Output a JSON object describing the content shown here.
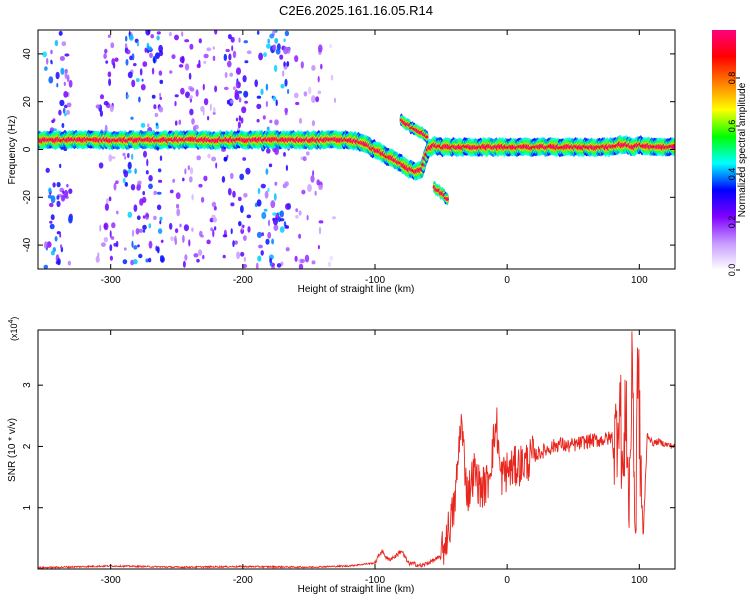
{
  "title": "C2E6.2025.161.16.05.R14",
  "chart_data": [
    {
      "type": "heatmap",
      "xlabel": "Height of straight line (km)",
      "ylabel": "Frequency (Hz)",
      "xlim": [
        -355,
        127
      ],
      "ylim": [
        -50,
        50
      ],
      "xticks": [
        -300,
        -200,
        -100,
        0,
        100
      ],
      "yticks": [
        -40,
        -20,
        0,
        20,
        40
      ],
      "colorbar": {
        "label": "Normalized spectral amplitude",
        "range": [
          0,
          1
        ],
        "ticks": [
          "0.0",
          "0.2",
          "0.4",
          "0.6",
          "0.8"
        ],
        "colors": [
          "#ffffff",
          "#c79bff",
          "#7f00ff",
          "#0000ff",
          "#00ffff",
          "#00ff00",
          "#ffff00",
          "#ff8000",
          "#ff0000",
          "#ff0080"
        ]
      },
      "ridge": {
        "x": [
          -355,
          -300,
          -250,
          -200,
          -150,
          -120,
          -110,
          -100,
          -90,
          -80,
          -75,
          -70,
          -65,
          -60,
          -55,
          -50,
          -45,
          -40,
          -30,
          -20,
          -10,
          0,
          20,
          40,
          60,
          70,
          80,
          85,
          90,
          95,
          100,
          110,
          127
        ],
        "y": [
          4,
          4,
          4,
          4,
          4,
          4,
          3,
          0,
          -3,
          -6,
          -8,
          -9,
          -9,
          0,
          2,
          1,
          1,
          1,
          1,
          1,
          1,
          1,
          1,
          1,
          1,
          1,
          1,
          2,
          2,
          1,
          2,
          1,
          1
        ]
      },
      "side_branches": [
        {
          "x": [
            -80,
            -72,
            -65,
            -60
          ],
          "y": [
            12,
            9,
            7,
            5
          ]
        },
        {
          "x": [
            -55,
            -48,
            -45
          ],
          "y": [
            -16,
            -19,
            -21
          ]
        }
      ],
      "noise_region_x": [
        -355,
        -130
      ],
      "noise_stripes": [
        {
          "x": [
            -350,
            -330
          ],
          "amplitude": 0.35
        },
        {
          "x": [
            -310,
            -295
          ],
          "amplitude": 0.25
        },
        {
          "x": [
            -290,
            -260
          ],
          "amplitude": 0.35
        },
        {
          "x": [
            -255,
            -220
          ],
          "amplitude": 0.22
        },
        {
          "x": [
            -215,
            -195
          ],
          "amplitude": 0.3
        },
        {
          "x": [
            -190,
            -165
          ],
          "amplitude": 0.35
        },
        {
          "x": [
            -160,
            -140
          ],
          "amplitude": 0.18
        },
        {
          "x": [
            -135,
            -130
          ],
          "amplitude": 0.1
        }
      ]
    },
    {
      "type": "line",
      "xlabel": "Height of straight line (km)",
      "ylabel": "SNR (10 * v/v)",
      "scale_label": "(x10",
      "scale_exponent": "4",
      "scale_close": ")",
      "xlim": [
        -355,
        127
      ],
      "ylim": [
        0,
        3.9
      ],
      "xticks": [
        -300,
        -200,
        -100,
        0,
        100
      ],
      "yticks": [
        1,
        2,
        3
      ],
      "series": [
        {
          "color": "#e8261e",
          "x": [
            -355,
            -300,
            -250,
            -200,
            -150,
            -120,
            -100,
            -95,
            -90,
            -85,
            -80,
            -75,
            -70,
            -65,
            -60,
            -55,
            -50,
            -45,
            -40,
            -38,
            -35,
            -30,
            -25,
            -20,
            -15,
            -12,
            -8,
            -5,
            0,
            5,
            10,
            15,
            20,
            25,
            30,
            35,
            40,
            45,
            50,
            55,
            60,
            65,
            70,
            75,
            80,
            82,
            85,
            88,
            90,
            92,
            95,
            97,
            99,
            100,
            103,
            106,
            110,
            115,
            120,
            127
          ],
          "y": [
            0.02,
            0.05,
            0.03,
            0.04,
            0.03,
            0.05,
            0.1,
            0.3,
            0.15,
            0.2,
            0.3,
            0.1,
            0.08,
            0.05,
            0.1,
            0.15,
            0.2,
            0.6,
            1.0,
            1.5,
            2.45,
            1.2,
            1.6,
            1.3,
            1.4,
            1.8,
            2.4,
            1.5,
            1.6,
            1.65,
            1.7,
            1.75,
            1.85,
            1.9,
            1.95,
            2.0,
            2.05,
            2.0,
            2.02,
            2.05,
            2.08,
            2.1,
            2.1,
            2.12,
            2.15,
            2.05,
            2.9,
            1.3,
            2.9,
            0.9,
            3.5,
            0.2,
            3.7,
            2.3,
            0.5,
            2.2,
            2.05,
            2.08,
            2.03,
            2.0
          ]
        }
      ]
    }
  ]
}
